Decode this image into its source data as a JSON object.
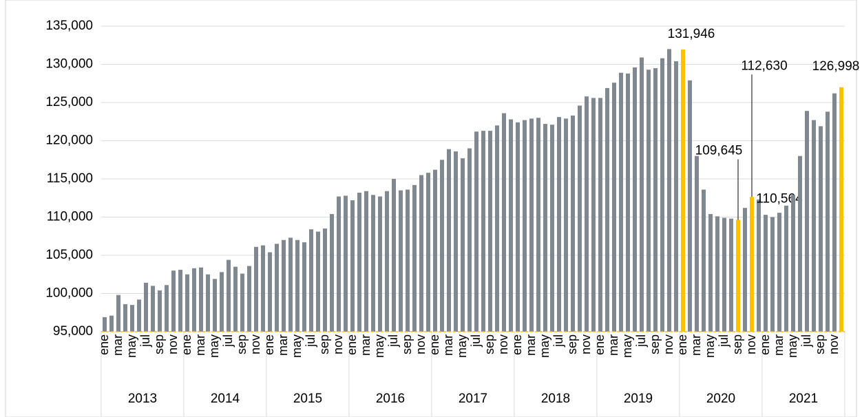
{
  "chart_data": {
    "type": "bar",
    "categories": [
      "ene",
      null,
      "mar",
      null,
      "may",
      null,
      "jul",
      null,
      "sep",
      null,
      "nov",
      null,
      "ene",
      null,
      "mar",
      null,
      "may",
      null,
      "jul",
      null,
      "sep",
      null,
      "nov",
      null,
      "ene",
      null,
      "mar",
      null,
      "may",
      null,
      "jul",
      null,
      "sep",
      null,
      "nov",
      null,
      "ene",
      null,
      "mar",
      null,
      "may",
      null,
      "jul",
      null,
      "sep",
      null,
      "nov",
      null,
      "ene",
      null,
      "mar",
      null,
      "may",
      null,
      "jul",
      null,
      "sep",
      null,
      "nov",
      null,
      "ene",
      null,
      "mar",
      null,
      "may",
      null,
      "jul",
      null,
      "sep",
      null,
      "nov",
      null,
      "ene",
      null,
      "mar",
      null,
      "may",
      null,
      "jul",
      null,
      "sep",
      null,
      "nov",
      null,
      "ene",
      null,
      "mar",
      null,
      "may",
      null,
      "jul",
      null,
      "sep",
      null,
      "nov",
      null,
      "ene",
      null,
      "mar",
      null,
      "may",
      null,
      "jul",
      null,
      "sep",
      null,
      "nov",
      null
    ],
    "groups": [
      "2013",
      "2014",
      "2015",
      "2016",
      "2017",
      "2018",
      "2019",
      "2020",
      "2021"
    ],
    "values": [
      96900,
      97100,
      99800,
      98600,
      98500,
      99200,
      101400,
      101000,
      100400,
      101100,
      103000,
      103100,
      102500,
      103300,
      103400,
      102500,
      101900,
      102800,
      104400,
      103500,
      102600,
      103600,
      106100,
      106300,
      105400,
      106500,
      107000,
      107300,
      107000,
      106700,
      108400,
      108100,
      108500,
      110400,
      112700,
      112800,
      112200,
      113200,
      113400,
      112900,
      112700,
      113400,
      115000,
      113500,
      113600,
      114200,
      115500,
      115800,
      116200,
      117500,
      118900,
      118600,
      117700,
      119000,
      121200,
      121300,
      121300,
      122000,
      123600,
      122800,
      122400,
      122700,
      122900,
      123000,
      122200,
      122100,
      123100,
      122900,
      123300,
      124600,
      125800,
      125600,
      125600,
      126900,
      127600,
      128900,
      128800,
      129600,
      130900,
      129300,
      129500,
      130800,
      132000,
      130400,
      131946,
      127900,
      118000,
      113600,
      110400,
      110100,
      109900,
      109800,
      109645,
      111200,
      112630,
      112300,
      110300,
      110000,
      110564,
      111500,
      112900,
      118000,
      123900,
      122700,
      121900,
      123800,
      126200,
      126998
    ],
    "value_labels": [
      null,
      null,
      null,
      null,
      null,
      null,
      null,
      null,
      null,
      null,
      null,
      null,
      null,
      null,
      null,
      null,
      null,
      null,
      null,
      null,
      null,
      null,
      null,
      null,
      null,
      null,
      null,
      null,
      null,
      null,
      null,
      null,
      null,
      null,
      null,
      null,
      null,
      null,
      null,
      null,
      null,
      null,
      null,
      null,
      null,
      null,
      null,
      null,
      null,
      null,
      null,
      null,
      null,
      null,
      null,
      null,
      null,
      null,
      null,
      null,
      null,
      null,
      null,
      null,
      null,
      null,
      null,
      null,
      null,
      null,
      null,
      null,
      null,
      null,
      null,
      null,
      null,
      null,
      null,
      null,
      null,
      null,
      null,
      null,
      "131,946",
      null,
      null,
      null,
      null,
      null,
      null,
      null,
      "109,645",
      null,
      "112,630",
      null,
      null,
      null,
      "110,564",
      null,
      null,
      null,
      null,
      null,
      null,
      null,
      null,
      "126,998"
    ],
    "color": "#7f8890",
    "highlight_color": "#ffc000",
    "highlighted": [
      84,
      92,
      94,
      107
    ],
    "ylim": [
      95000,
      135000
    ],
    "yticks": [
      {
        "value": 95000,
        "label": "95,000"
      },
      {
        "value": 100000,
        "label": "100,000"
      },
      {
        "value": 105000,
        "label": "105,000"
      },
      {
        "value": 110000,
        "label": "110,000"
      },
      {
        "value": 115000,
        "label": "115,000"
      },
      {
        "value": 120000,
        "label": "120,000"
      },
      {
        "value": 125000,
        "label": "125,000"
      },
      {
        "value": 130000,
        "label": "130,000"
      },
      {
        "value": 135000,
        "label": "135,000"
      }
    ],
    "grid": true
  }
}
